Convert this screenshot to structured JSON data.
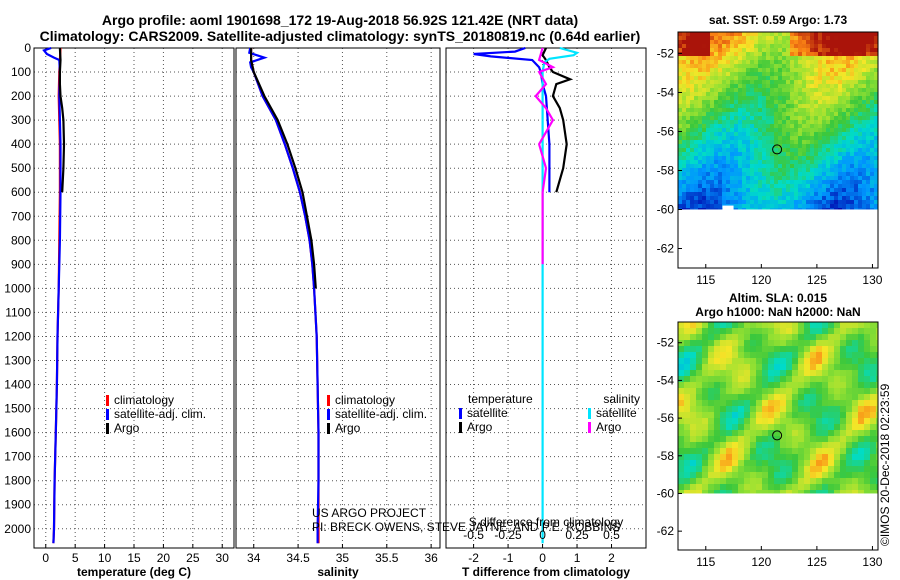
{
  "title_line1": "Argo profile: aoml 1901698_172 19-Aug-2018 56.92S 121.42E (NRT data)",
  "title_line2": "Climatology: CARS2009. Satellite-adjusted climatology: synTS_20180819.nc (0.64d earlier)",
  "colors": {
    "climatology": "#ff0000",
    "satellite": "#0000ff",
    "argo": "#000000",
    "satellite_s": "#00e5ff",
    "argo_s": "#ff00ff",
    "grid": "#555555"
  },
  "depth_axis": {
    "ticks": [
      0,
      100,
      200,
      300,
      400,
      500,
      600,
      700,
      800,
      900,
      1000,
      1100,
      1200,
      1300,
      1400,
      1500,
      1600,
      1700,
      1800,
      1900,
      2000
    ],
    "range": [
      0,
      2080
    ]
  },
  "chart_data": [
    {
      "type": "line",
      "name": "temperature-panel",
      "xlabel": "temperature (deg C)",
      "ylabel": "depth",
      "xlim": [
        -2,
        32
      ],
      "xticks": [
        0,
        5,
        10,
        15,
        20,
        25,
        30
      ],
      "legend": [
        "climatology",
        "satellite-adj. clim.",
        "Argo"
      ],
      "series": [
        {
          "name": "climatology",
          "depth": [
            0,
            50,
            100,
            200,
            300,
            400,
            600,
            800,
            1000,
            1200,
            1400,
            1600,
            1800,
            2000,
            2060
          ],
          "values": [
            2.5,
            2.4,
            2.3,
            2.2,
            2.3,
            2.4,
            2.4,
            2.3,
            2.2,
            2.0,
            1.9,
            1.7,
            1.5,
            1.4,
            1.3
          ]
        },
        {
          "name": "satellite-adj. clim.",
          "depth": [
            0,
            10,
            25,
            40,
            50,
            100,
            200,
            300,
            400,
            600,
            800,
            1000,
            1200,
            1400,
            1600,
            1800,
            2000,
            2060
          ],
          "values": [
            0.9,
            -0.3,
            0.2,
            1.4,
            2.3,
            2.4,
            2.3,
            2.4,
            2.5,
            2.5,
            2.4,
            2.2,
            2.0,
            1.9,
            1.7,
            1.5,
            1.4,
            1.3
          ]
        },
        {
          "name": "Argo",
          "depth": [
            0,
            50,
            100,
            150,
            200,
            250,
            300,
            400,
            500,
            600
          ],
          "values": [
            2.4,
            2.5,
            2.4,
            2.4,
            2.5,
            2.8,
            3.0,
            3.1,
            3.0,
            2.8
          ]
        }
      ]
    },
    {
      "type": "line",
      "name": "salinity-panel",
      "xlabel": "salinity",
      "ylabel": "depth",
      "xlim": [
        33.8,
        36.1
      ],
      "xticks": [
        34,
        34.5,
        35,
        35.5,
        36
      ],
      "legend": [
        "climatology",
        "satellite-adj. clim.",
        "Argo"
      ],
      "series": [
        {
          "name": "climatology",
          "depth": [
            0,
            50,
            100,
            150,
            200,
            300,
            400,
            500,
            600,
            700,
            800,
            900,
            1000,
            1200,
            1400,
            1600,
            1800,
            2000,
            2060
          ],
          "values": [
            33.97,
            33.97,
            34.0,
            34.05,
            34.1,
            34.25,
            34.35,
            34.44,
            34.52,
            34.58,
            34.63,
            34.66,
            34.68,
            34.71,
            34.72,
            34.73,
            34.73,
            34.73,
            34.73
          ]
        },
        {
          "name": "satellite-adj. clim.",
          "depth": [
            0,
            20,
            40,
            60,
            80,
            100,
            150,
            200,
            300,
            400,
            500,
            600,
            700,
            800,
            900,
            1000,
            1200,
            1400,
            1600,
            1800,
            2000,
            2060
          ],
          "values": [
            33.96,
            33.95,
            34.12,
            33.96,
            33.97,
            34.0,
            34.05,
            34.1,
            34.25,
            34.35,
            34.44,
            34.52,
            34.58,
            34.63,
            34.66,
            34.68,
            34.71,
            34.72,
            34.73,
            34.73,
            34.72,
            34.72
          ]
        },
        {
          "name": "Argo",
          "depth": [
            0,
            50,
            100,
            150,
            200,
            300,
            400,
            500,
            600,
            700,
            800,
            900,
            1000
          ],
          "values": [
            33.97,
            33.97,
            34.0,
            34.06,
            34.12,
            34.27,
            34.38,
            34.47,
            34.55,
            34.6,
            34.65,
            34.68,
            34.7
          ]
        }
      ]
    },
    {
      "type": "line",
      "name": "difference-panel",
      "xlabel": "T difference from climatology",
      "xlim": [
        -2.8,
        3.0
      ],
      "xticks": [
        -2,
        -1,
        0,
        1,
        2
      ],
      "top_label": "S difference from climatology",
      "top_ticks": [
        "-0.5",
        "-0.25",
        "0",
        "0.25",
        "0.5"
      ],
      "top_tick_values": [
        -2,
        -1,
        0,
        1,
        2
      ],
      "legend_left_title": "temperature",
      "legend_right_title": "salinity",
      "legend": [
        "satellite",
        "Argo",
        "satellite",
        "Argo"
      ],
      "series": [
        {
          "name": "T satellite",
          "depth": [
            0,
            15,
            25,
            35,
            50,
            80,
            100,
            150,
            200,
            300,
            400,
            500,
            600
          ],
          "values": [
            -0.5,
            -0.8,
            -2.0,
            -1.5,
            -0.3,
            -0.1,
            -0.05,
            0.0,
            0.1,
            0.15,
            0.2,
            0.2,
            0.2
          ]
        },
        {
          "name": "T Argo",
          "depth": [
            0,
            30,
            50,
            80,
            100,
            130,
            150,
            200,
            250,
            300,
            400,
            500,
            600
          ],
          "values": [
            0.1,
            0.0,
            0.1,
            0.2,
            0.3,
            0.8,
            0.4,
            0.3,
            0.5,
            0.6,
            0.7,
            0.6,
            0.4
          ]
        },
        {
          "name": "S satellite",
          "depth": [
            0,
            20,
            30,
            45,
            60,
            100,
            200,
            400,
            600,
            800,
            1000,
            1400,
            1800,
            2060
          ],
          "values": [
            0.5,
            1.0,
            0.9,
            0.2,
            0.05,
            0.0,
            0.0,
            0.0,
            0.0,
            0.0,
            0.0,
            0.0,
            0.0,
            0.0
          ]
        },
        {
          "name": "S Argo",
          "depth": [
            0,
            50,
            80,
            100,
            150,
            200,
            250,
            300,
            400,
            500,
            600,
            800,
            900
          ],
          "values": [
            0.0,
            -0.1,
            0.3,
            -0.1,
            0.1,
            -0.2,
            0.1,
            0.3,
            -0.1,
            0.1,
            0.0,
            0.0,
            0.0
          ]
        }
      ]
    },
    {
      "type": "heatmap",
      "name": "sst-map",
      "title": "sat. SST: 0.59 Argo: 1.73",
      "xticks": [
        115,
        120,
        125,
        130
      ],
      "yticks": [
        -52,
        -54,
        -56,
        -58,
        -60,
        -62
      ],
      "xlim": [
        112.5,
        130.5
      ],
      "ylim": [
        -63,
        -50.9
      ],
      "marker": [
        121.42,
        -56.92
      ]
    },
    {
      "type": "heatmap",
      "name": "sla-map",
      "title_line1": "Altim. SLA: 0.015",
      "title_line2": "Argo h1000: NaN h2000: NaN",
      "xticks": [
        115,
        120,
        125,
        130
      ],
      "yticks": [
        -52,
        -54,
        -56,
        -58,
        -60,
        -62
      ],
      "xlim": [
        112.5,
        130.5
      ],
      "ylim": [
        -63,
        -50.9
      ],
      "marker": [
        121.42,
        -56.92
      ]
    }
  ],
  "legend_temp": [
    "climatology",
    "satellite-adj. clim.",
    "Argo"
  ],
  "legend_sal": [
    "climatology",
    "satellite-adj. clim.",
    "Argo"
  ],
  "credit_line1": "US ARGO PROJECT",
  "credit_line2": "PI: BRECK OWENS, STEVE JAYNE, AND P.E. ROBBINS",
  "side_credit": "©IMOS 20-Dec-2018 02:23:59"
}
